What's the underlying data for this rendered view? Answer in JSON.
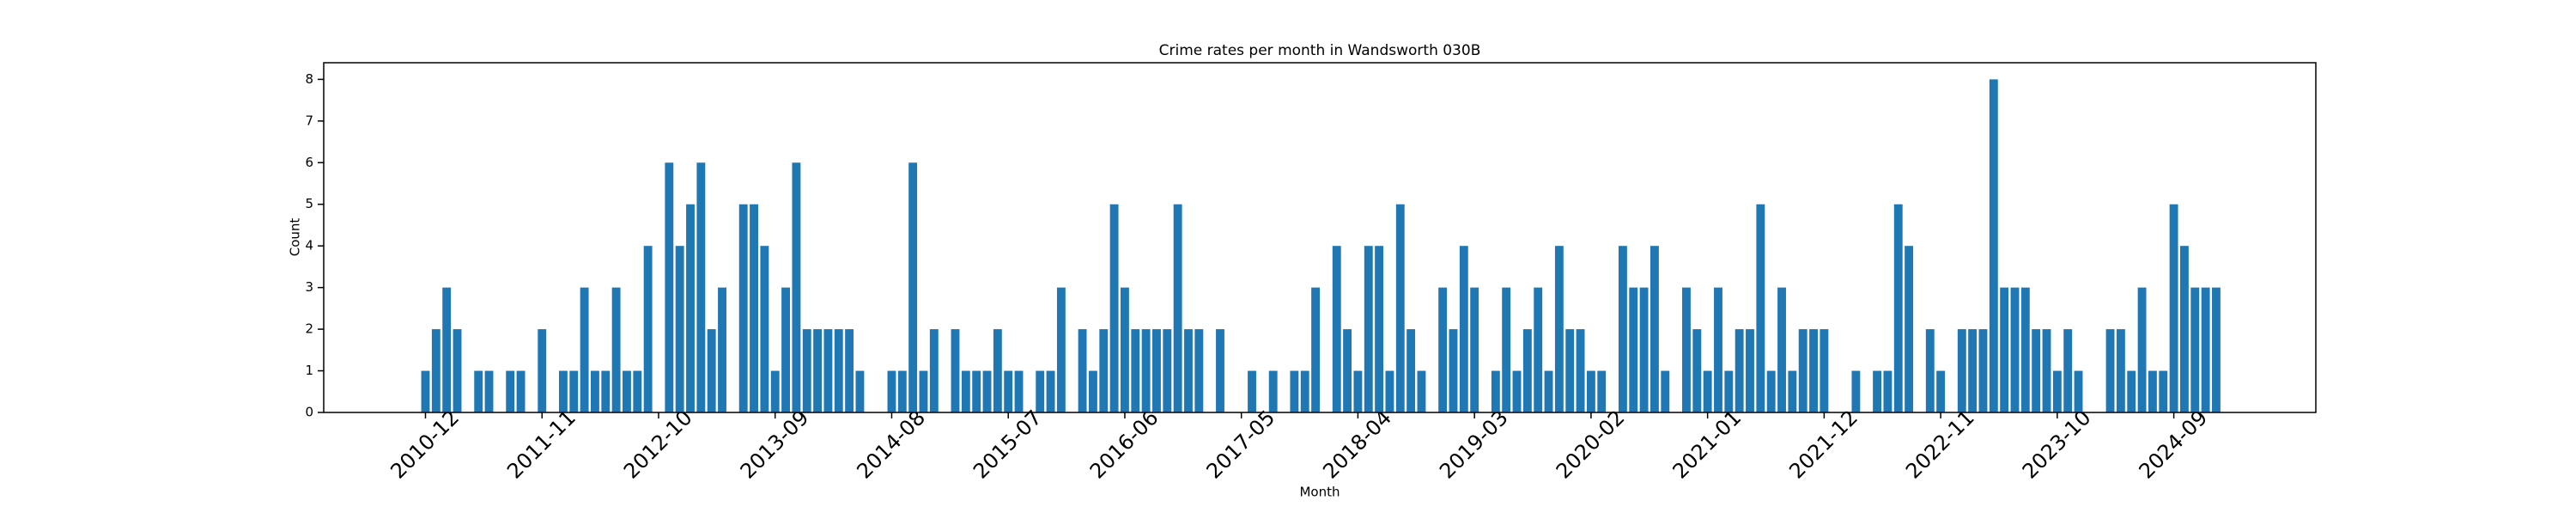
{
  "chart_data": {
    "type": "bar",
    "title": "Crime rates per month in Wandsworth 030B",
    "xlabel": "Month",
    "ylabel": "Count",
    "color": "#1f77b4",
    "categories": [
      "2010-12",
      null,
      null,
      null,
      null,
      null,
      null,
      null,
      null,
      null,
      null,
      "2011-11",
      null,
      null,
      null,
      null,
      null,
      null,
      null,
      null,
      null,
      null,
      "2012-10",
      null,
      null,
      null,
      null,
      null,
      null,
      null,
      null,
      null,
      null,
      "2013-09",
      null,
      null,
      null,
      null,
      null,
      null,
      null,
      null,
      null,
      null,
      "2014-08",
      null,
      null,
      null,
      null,
      null,
      null,
      null,
      null,
      null,
      null,
      "2015-07",
      null,
      null,
      null,
      null,
      null,
      null,
      null,
      null,
      null,
      null,
      "2016-06",
      null,
      null,
      null,
      null,
      null,
      null,
      null,
      null,
      null,
      null,
      "2017-05",
      null,
      null,
      null,
      null,
      null,
      null,
      null,
      null,
      null,
      null,
      "2018-04",
      null,
      null,
      null,
      null,
      null,
      null,
      null,
      null,
      null,
      null,
      "2019-03",
      null,
      null,
      null,
      null,
      null,
      null,
      null,
      null,
      null,
      null,
      "2020-02",
      null,
      null,
      null,
      null,
      null,
      null,
      null,
      null,
      null,
      null,
      "2021-01",
      null,
      null,
      null,
      null,
      null,
      null,
      null,
      null,
      null,
      null,
      "2021-12",
      null,
      null,
      null,
      null,
      null,
      null,
      null,
      null,
      null,
      null,
      "2022-11",
      null,
      null,
      null,
      null,
      null,
      null,
      null,
      null,
      null,
      null,
      "2023-10",
      null,
      null,
      null,
      null,
      null,
      null,
      null,
      null,
      null,
      null,
      "2024-09",
      null,
      null,
      null,
      null
    ],
    "values": [
      1,
      2,
      3,
      2,
      0,
      1,
      1,
      0,
      1,
      1,
      0,
      2,
      0,
      1,
      1,
      3,
      1,
      1,
      3,
      1,
      1,
      4,
      0,
      6,
      4,
      5,
      6,
      2,
      3,
      0,
      5,
      5,
      4,
      1,
      3,
      6,
      2,
      2,
      2,
      2,
      2,
      1,
      0,
      0,
      1,
      1,
      6,
      1,
      2,
      0,
      2,
      1,
      1,
      1,
      2,
      1,
      1,
      0,
      1,
      1,
      3,
      0,
      2,
      1,
      2,
      5,
      3,
      2,
      2,
      2,
      2,
      5,
      2,
      2,
      0,
      2,
      0,
      0,
      1,
      0,
      1,
      0,
      1,
      1,
      3,
      0,
      4,
      2,
      1,
      4,
      4,
      1,
      5,
      2,
      1,
      0,
      3,
      2,
      4,
      3,
      0,
      1,
      3,
      1,
      2,
      3,
      1,
      4,
      2,
      2,
      1,
      1,
      0,
      4,
      3,
      3,
      4,
      1,
      0,
      3,
      2,
      1,
      3,
      1,
      2,
      2,
      5,
      1,
      3,
      1,
      2,
      2,
      2,
      0,
      0,
      1,
      0,
      1,
      1,
      5,
      4,
      0,
      2,
      1,
      0,
      2,
      2,
      2,
      8,
      3,
      3,
      3,
      2,
      2,
      1,
      2,
      1,
      0,
      0,
      2,
      2,
      1,
      3,
      1,
      1,
      5,
      4,
      3,
      3,
      3
    ],
    "ylim": [
      0,
      8.4
    ],
    "yticks": [
      0,
      1,
      2,
      3,
      4,
      5,
      6,
      7,
      8
    ]
  }
}
